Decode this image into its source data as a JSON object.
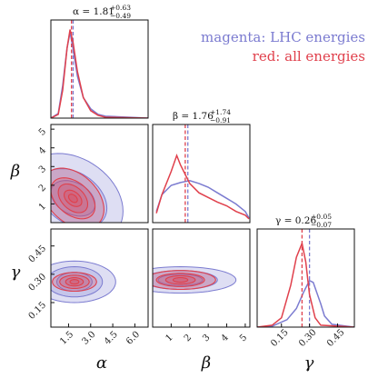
{
  "colors": {
    "magenta": "#7b7bd0",
    "red": "#e0404c",
    "frame": "#111111"
  },
  "legend": [
    {
      "text": "magenta: LHC energies",
      "color": "#7b7bd0"
    },
    {
      "text": "red: all energies",
      "color": "#e0404c"
    }
  ],
  "chart_data": {
    "type": "corner",
    "parameters": [
      {
        "symbol": "α",
        "range": [
          0.3,
          6.9
        ],
        "ticks": [
          "1.5",
          "3.0",
          "4.5",
          "6.0"
        ],
        "tick_values": [
          1.5,
          3.0,
          4.5,
          6.0
        ],
        "title": {
          "main": "α = 1.81",
          "sup": "+0.63",
          "sub": "−0.49"
        }
      },
      {
        "symbol": "β",
        "range": [
          0.0,
          5.25
        ],
        "ticks": [
          "1",
          "2",
          "3",
          "4",
          "5"
        ],
        "tick_values": [
          1,
          2,
          3,
          4,
          5
        ],
        "title": {
          "main": "β = 1.76",
          "sup": "+1.74",
          "sub": "−0.91"
        }
      },
      {
        "symbol": "γ",
        "range": [
          0.02,
          0.54
        ],
        "ticks": [
          "0.15",
          "0.30",
          "0.45"
        ],
        "tick_values": [
          0.15,
          0.3,
          0.45
        ],
        "title": {
          "main": "γ = 0.26",
          "sup": "+0.05",
          "sub": "−0.07"
        }
      }
    ],
    "series": [
      {
        "name": "magenta: LHC energies",
        "color": "#7b7bd0",
        "medians": [
          1.81,
          1.9,
          0.3
        ]
      },
      {
        "name": "red: all energies",
        "color": "#e0404c",
        "medians": [
          1.7,
          1.76,
          0.26
        ]
      }
    ],
    "marginals": {
      "alpha": {
        "magenta": [
          [
            0.3,
            0
          ],
          [
            0.8,
            0.05
          ],
          [
            1.1,
            0.35
          ],
          [
            1.4,
            0.75
          ],
          [
            1.6,
            0.92
          ],
          [
            1.8,
            0.75
          ],
          [
            2.1,
            0.45
          ],
          [
            2.5,
            0.22
          ],
          [
            3.0,
            0.1
          ],
          [
            3.5,
            0.04
          ],
          [
            4.0,
            0.02
          ],
          [
            6.9,
            0
          ]
        ],
        "red": [
          [
            0.3,
            0
          ],
          [
            0.8,
            0.04
          ],
          [
            1.1,
            0.3
          ],
          [
            1.4,
            0.75
          ],
          [
            1.6,
            0.95
          ],
          [
            1.8,
            0.82
          ],
          [
            2.1,
            0.5
          ],
          [
            2.5,
            0.22
          ],
          [
            3.0,
            0.08
          ],
          [
            3.5,
            0.03
          ],
          [
            4.0,
            0.01
          ],
          [
            6.9,
            0
          ]
        ]
      },
      "beta": {
        "magenta": [
          [
            0.2,
            0.12
          ],
          [
            0.5,
            0.3
          ],
          [
            1.0,
            0.4
          ],
          [
            1.5,
            0.43
          ],
          [
            2.0,
            0.45
          ],
          [
            2.5,
            0.42
          ],
          [
            3.0,
            0.38
          ],
          [
            3.5,
            0.32
          ],
          [
            4.0,
            0.26
          ],
          [
            4.5,
            0.2
          ],
          [
            5.0,
            0.12
          ],
          [
            5.2,
            0.05
          ]
        ],
        "red": [
          [
            0.2,
            0.1
          ],
          [
            0.5,
            0.3
          ],
          [
            1.0,
            0.55
          ],
          [
            1.3,
            0.72
          ],
          [
            1.5,
            0.62
          ],
          [
            2.0,
            0.42
          ],
          [
            2.5,
            0.32
          ],
          [
            3.0,
            0.27
          ],
          [
            3.5,
            0.22
          ],
          [
            4.0,
            0.18
          ],
          [
            4.5,
            0.12
          ],
          [
            5.0,
            0.08
          ],
          [
            5.2,
            0.04
          ]
        ]
      },
      "gamma": {
        "magenta": [
          [
            0.02,
            0
          ],
          [
            0.1,
            0.01
          ],
          [
            0.18,
            0.08
          ],
          [
            0.23,
            0.2
          ],
          [
            0.27,
            0.38
          ],
          [
            0.3,
            0.5
          ],
          [
            0.32,
            0.48
          ],
          [
            0.36,
            0.25
          ],
          [
            0.38,
            0.12
          ],
          [
            0.42,
            0.03
          ],
          [
            0.54,
            0
          ]
        ],
        "red": [
          [
            0.02,
            0
          ],
          [
            0.1,
            0.02
          ],
          [
            0.15,
            0.1
          ],
          [
            0.2,
            0.45
          ],
          [
            0.23,
            0.75
          ],
          [
            0.26,
            0.9
          ],
          [
            0.28,
            0.7
          ],
          [
            0.3,
            0.35
          ],
          [
            0.33,
            0.1
          ],
          [
            0.36,
            0.02
          ],
          [
            0.54,
            0
          ]
        ]
      }
    },
    "joint": {
      "alpha_beta": {
        "center": [
          1.8,
          1.3
        ],
        "magenta_levels": [
          [
            1.5,
            0.9,
            -0.35
          ],
          [
            2.3,
            1.5,
            -0.35
          ],
          [
            3.4,
            2.3,
            -0.3
          ]
        ],
        "red_levels": [
          [
            0.3,
            0.2,
            -0.45
          ],
          [
            0.6,
            0.4,
            -0.45
          ],
          [
            1.0,
            0.7,
            -0.45
          ],
          [
            1.5,
            1.0,
            -0.45
          ],
          [
            2.1,
            1.5,
            -0.4
          ]
        ]
      },
      "alpha_gamma": {
        "center": [
          1.9,
          0.26
        ],
        "magenta_levels": [
          [
            1.2,
            0.05,
            0.0
          ],
          [
            1.9,
            0.08,
            0.0
          ],
          [
            2.8,
            0.11,
            0.0
          ]
        ],
        "red_levels": [
          [
            0.3,
            0.012,
            0.0
          ],
          [
            0.6,
            0.022,
            0.0
          ],
          [
            1.0,
            0.035,
            0.0
          ],
          [
            1.5,
            0.05,
            0.0
          ]
        ]
      },
      "beta_gamma": {
        "center": [
          1.5,
          0.27
        ],
        "magenta_levels": [
          [
            1.2,
            0.03,
            0.0
          ],
          [
            2.0,
            0.05,
            0.0
          ],
          [
            3.0,
            0.07,
            0.0
          ]
        ],
        "red_levels": [
          [
            0.4,
            0.012,
            0.0
          ],
          [
            0.8,
            0.022,
            0.0
          ],
          [
            1.3,
            0.035,
            0.0
          ],
          [
            1.9,
            0.05,
            0.0
          ]
        ]
      }
    }
  }
}
